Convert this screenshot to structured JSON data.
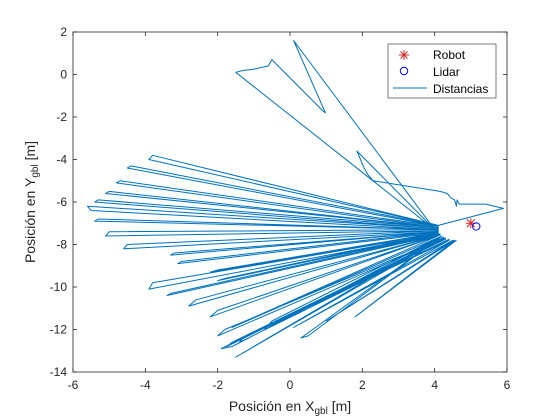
{
  "chart_data": {
    "type": "line",
    "title": "",
    "xlabel": {
      "main": "Posición en X",
      "sub": "gbl",
      "unit": " [m]"
    },
    "ylabel": {
      "main": "Posición en Y",
      "sub": "gbl",
      "unit": " [m]"
    },
    "xlim": [
      -6,
      6
    ],
    "ylim": [
      -14,
      2
    ],
    "xticks": [
      -6,
      -4,
      -2,
      0,
      2,
      4,
      6
    ],
    "yticks": [
      -14,
      -12,
      -10,
      -8,
      -6,
      -4,
      -2,
      0,
      2
    ],
    "grid": false,
    "legend_position": "top-right",
    "colors": {
      "robot": "#d62728",
      "lidar": "#0000ff",
      "distancias": "#0072bd",
      "axis": "#262626"
    },
    "legend": [
      {
        "key": "robot",
        "label": "Robot",
        "marker": "star"
      },
      {
        "key": "lidar",
        "label": "Lidar",
        "marker": "circle"
      },
      {
        "key": "distancias",
        "label": "Distancias",
        "marker": "line"
      }
    ],
    "robot": {
      "x": 5.0,
      "y": -7.0
    },
    "lidar": {
      "x": 5.15,
      "y": -7.15
    },
    "distancias": {
      "x": [
        4.0,
        0.1,
        0.98,
        0.9,
        -0.5,
        -0.6,
        -1.0,
        -1.25,
        -1.4,
        -1.5,
        4.0,
        1.85,
        1.95,
        2.05,
        2.15,
        2.3,
        4.15,
        4.35,
        4.45,
        4.55,
        4.6,
        4.62,
        4.68,
        5.4,
        5.9,
        4.1,
        -3.8,
        -3.9,
        4.1,
        -4.4,
        -4.5,
        4.1,
        -4.7,
        -4.8,
        4.1,
        -5.0,
        -5.1,
        4.1,
        -5.3,
        -5.4,
        4.1,
        -5.6,
        -5.5,
        4.1,
        -5.3,
        -5.4,
        4.1,
        -5.0,
        -5.1,
        4.1,
        -4.5,
        -4.6,
        4.1,
        -3.2,
        -3.3,
        4.1,
        -3.0,
        -3.1,
        4.1,
        -2.0,
        -2.2,
        4.1,
        -1.8,
        -2.0,
        4.1,
        -3.8,
        -3.9,
        4.15,
        -3.3,
        -3.4,
        4.15,
        -2.6,
        -2.8,
        4.15,
        -2.0,
        -2.2,
        4.15,
        -1.5,
        -1.6,
        4.2,
        -0.5,
        -0.7,
        4.2,
        0.5,
        0.3,
        4.2,
        -0.8,
        -1.0,
        4.2,
        -1.4,
        -1.5,
        4.25,
        -1.6,
        -1.9,
        4.25,
        -1.8,
        -2.0,
        4.3,
        -1.6,
        -1.75,
        4.3,
        -1.3,
        -1.4,
        4.4,
        -0.8,
        4.4,
        0.1,
        4.5,
        1.0,
        4.55,
        1.8,
        4.6
      ],
      "y": [
        -7.3,
        1.6,
        -1.8,
        -1.7,
        0.7,
        0.4,
        0.25,
        0.2,
        0.15,
        0.1,
        -7.3,
        -3.6,
        -4.0,
        -4.4,
        -4.7,
        -5.0,
        -5.5,
        -5.6,
        -5.8,
        -5.9,
        -6.2,
        -5.9,
        -6.1,
        -6.1,
        -6.3,
        -7.1,
        -3.8,
        -4.0,
        -7.1,
        -4.3,
        -4.4,
        -7.15,
        -5.0,
        -5.1,
        -7.2,
        -5.5,
        -5.6,
        -7.2,
        -5.9,
        -6.0,
        -7.25,
        -6.2,
        -6.4,
        -7.3,
        -6.8,
        -6.9,
        -7.3,
        -7.4,
        -7.6,
        -7.35,
        -8.0,
        -8.2,
        -7.4,
        -8.4,
        -8.5,
        -7.4,
        -8.8,
        -8.9,
        -7.45,
        -9.2,
        -9.3,
        -7.45,
        -9.6,
        -9.7,
        -7.5,
        -9.8,
        -10.1,
        -7.5,
        -10.3,
        -10.4,
        -7.55,
        -10.6,
        -10.9,
        -7.55,
        -11.1,
        -11.4,
        -7.55,
        -11.8,
        -11.9,
        -7.6,
        -11.6,
        -12.0,
        -7.6,
        -12.3,
        -12.4,
        -7.6,
        -12.6,
        -12.8,
        -7.6,
        -13.2,
        -13.3,
        -7.65,
        -12.8,
        -12.9,
        -7.7,
        -12.0,
        -12.3,
        -7.7,
        -12.6,
        -12.8,
        -7.75,
        -12.4,
        -12.6,
        -7.75,
        -12.0,
        -7.8,
        -11.9,
        -7.8,
        -11.6,
        -7.8,
        -11.4,
        -7.8
      ]
    }
  }
}
